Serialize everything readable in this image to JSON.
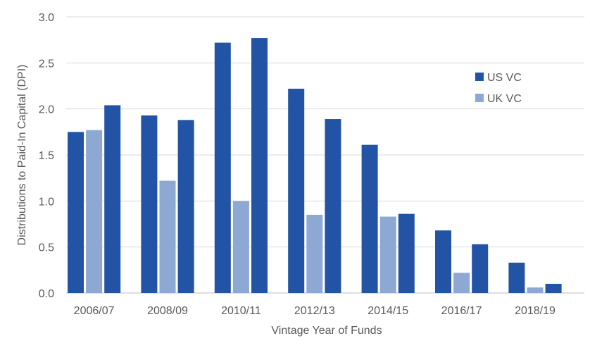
{
  "chart_data": {
    "type": "bar",
    "title": "",
    "xlabel": "Vintage Year of Funds",
    "ylabel": "Distributions to Paid-In Capital (DPI)",
    "ylim": [
      0,
      3.0
    ],
    "yticks": [
      "0.0",
      "0.5",
      "1.0",
      "1.5",
      "2.0",
      "2.5",
      "3.0"
    ],
    "grid": true,
    "legend_position": "right",
    "categories": [
      "2006/07",
      "2008/09",
      "2010/11",
      "2012/13",
      "2014/15",
      "2016/17",
      "2018/19"
    ],
    "bars": [
      {
        "series": "US VC",
        "value": 1.75,
        "slot": 0
      },
      {
        "series": "UK VC",
        "value": 1.77,
        "slot": 1
      },
      {
        "series": "US VC",
        "value": 2.04,
        "slot": 2
      },
      {
        "series": "US VC",
        "value": 1.93,
        "slot": 4
      },
      {
        "series": "UK VC",
        "value": 1.22,
        "slot": 5
      },
      {
        "series": "US VC",
        "value": 1.88,
        "slot": 6
      },
      {
        "series": "US VC",
        "value": 2.72,
        "slot": 8
      },
      {
        "series": "UK VC",
        "value": 1.0,
        "slot": 9
      },
      {
        "series": "US VC",
        "value": 2.77,
        "slot": 10
      },
      {
        "series": "US VC",
        "value": 2.22,
        "slot": 12
      },
      {
        "series": "UK VC",
        "value": 0.85,
        "slot": 13
      },
      {
        "series": "US VC",
        "value": 1.89,
        "slot": 14
      },
      {
        "series": "US VC",
        "value": 1.61,
        "slot": 16
      },
      {
        "series": "UK VC",
        "value": 0.83,
        "slot": 17
      },
      {
        "series": "US VC",
        "value": 0.86,
        "slot": 18
      },
      {
        "series": "US VC",
        "value": 0.68,
        "slot": 20
      },
      {
        "series": "UK VC",
        "value": 0.22,
        "slot": 21
      },
      {
        "series": "US VC",
        "value": 0.53,
        "slot": 22
      },
      {
        "series": "US VC",
        "value": 0.33,
        "slot": 24
      },
      {
        "series": "UK VC",
        "value": 0.06,
        "slot": 25
      },
      {
        "series": "US VC",
        "value": 0.1,
        "slot": 26
      }
    ],
    "series": [
      {
        "name": "US VC",
        "color": "#2253a4"
      },
      {
        "name": "UK VC",
        "color": "#8ea8d4"
      }
    ]
  }
}
